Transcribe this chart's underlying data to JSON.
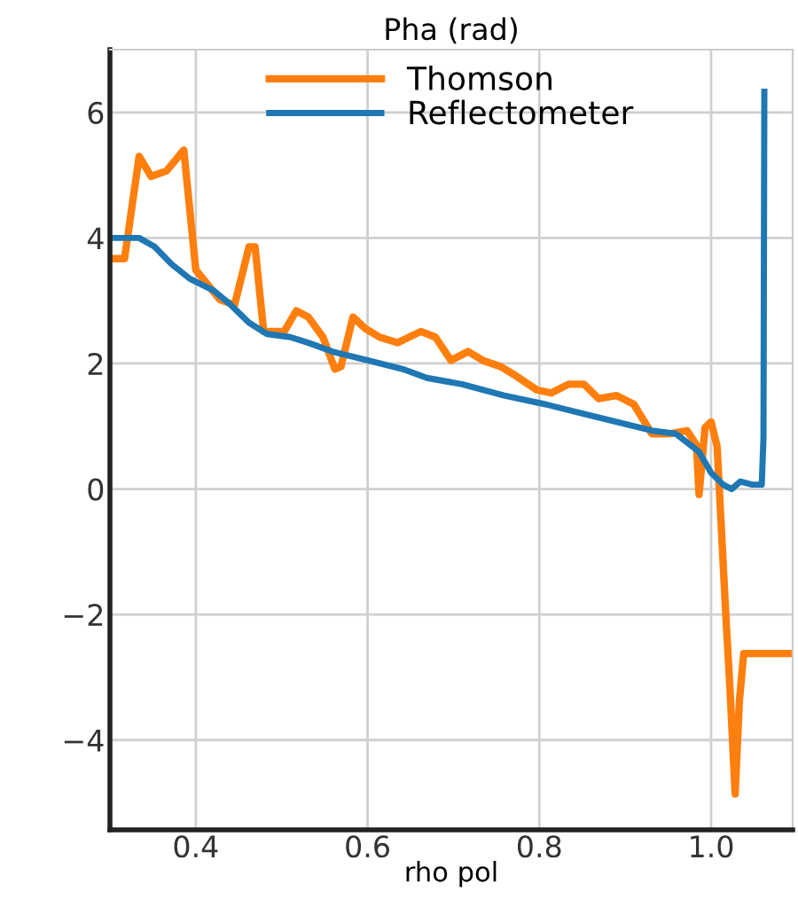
{
  "chart_data": {
    "type": "line",
    "title": "Pha (rad)",
    "xlabel": "rho pol",
    "xlim": [
      0.3,
      1.095
    ],
    "ylim": [
      -5.43,
      7
    ],
    "xticks": [
      {
        "value": 0.4,
        "label": "0.4"
      },
      {
        "value": 0.6,
        "label": "0.6"
      },
      {
        "value": 0.8,
        "label": "0.8"
      },
      {
        "value": 1.0,
        "label": "1.0"
      }
    ],
    "yticks": [
      {
        "value": -4,
        "label": "−4"
      },
      {
        "value": -2,
        "label": "−2"
      },
      0,
      2,
      4,
      6
    ],
    "grid": true,
    "legend": "top",
    "series": [
      {
        "name": "Thomson",
        "color": "#ff7f0e",
        "x": [
          0.3,
          0.317,
          0.334,
          0.348,
          0.366,
          0.386,
          0.4,
          0.428,
          0.445,
          0.462,
          0.469,
          0.479,
          0.503,
          0.517,
          0.531,
          0.548,
          0.562,
          0.569,
          0.583,
          0.597,
          0.614,
          0.635,
          0.662,
          0.679,
          0.697,
          0.717,
          0.734,
          0.755,
          0.772,
          0.797,
          0.814,
          0.834,
          0.852,
          0.869,
          0.89,
          0.91,
          0.931,
          0.952,
          0.972,
          0.983,
          0.986,
          0.993,
          1.0,
          1.007,
          1.01,
          1.017,
          1.022,
          1.028,
          1.033,
          1.038,
          1.095
        ],
        "values": [
          3.67,
          3.67,
          5.3,
          4.98,
          5.07,
          5.4,
          3.49,
          3.02,
          2.93,
          3.86,
          3.86,
          2.51,
          2.51,
          2.84,
          2.74,
          2.42,
          1.91,
          1.95,
          2.74,
          2.56,
          2.42,
          2.33,
          2.51,
          2.42,
          2.05,
          2.19,
          2.05,
          1.95,
          1.81,
          1.58,
          1.53,
          1.67,
          1.67,
          1.44,
          1.49,
          1.35,
          0.88,
          0.88,
          0.93,
          0.7,
          -0.09,
          0.98,
          1.07,
          0.68,
          -0.11,
          -1.97,
          -3.18,
          -4.86,
          -3.37,
          -2.62,
          -2.62
        ]
      },
      {
        "name": "Reflectometer",
        "color": "#1f77b4",
        "x": [
          0.3,
          0.334,
          0.352,
          0.372,
          0.393,
          0.421,
          0.441,
          0.462,
          0.483,
          0.51,
          0.531,
          0.559,
          0.6,
          0.641,
          0.669,
          0.71,
          0.759,
          0.807,
          0.848,
          0.89,
          0.931,
          0.959,
          0.976,
          0.986,
          1.0,
          1.014,
          1.024,
          1.034,
          1.048,
          1.059,
          1.061,
          1.062
        ],
        "values": [
          4.0,
          4.0,
          3.86,
          3.58,
          3.35,
          3.16,
          2.93,
          2.65,
          2.47,
          2.42,
          2.33,
          2.19,
          2.05,
          1.91,
          1.77,
          1.67,
          1.49,
          1.35,
          1.21,
          1.07,
          0.93,
          0.88,
          0.7,
          0.59,
          0.26,
          0.07,
          0.0,
          0.12,
          0.07,
          0.07,
          0.82,
          6.33
        ]
      }
    ]
  }
}
